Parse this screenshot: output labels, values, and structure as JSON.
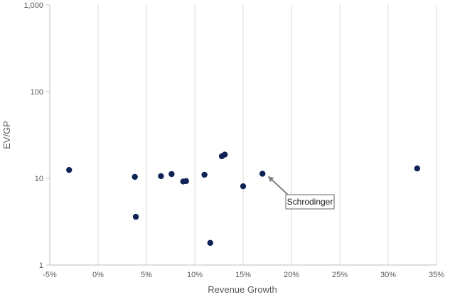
{
  "chart_data": {
    "type": "scatter",
    "xlabel": "Revenue Growth",
    "ylabel": "EV/GP",
    "x_unit": "percent",
    "xlim": [
      -5,
      35
    ],
    "ylim": [
      1,
      1000
    ],
    "y_scale": "log",
    "x_ticks": [
      -5,
      0,
      5,
      10,
      15,
      20,
      25,
      30,
      35
    ],
    "x_tick_labels": [
      "-5%",
      "0%",
      "5%",
      "10%",
      "15%",
      "20%",
      "25%",
      "30%",
      "35%"
    ],
    "y_ticks": [
      1,
      10,
      100,
      1000
    ],
    "y_tick_labels": [
      "1",
      "10",
      "100",
      "1,000"
    ],
    "grid": {
      "vertical": true,
      "horizontal": false
    },
    "marker_color": "#0d2257",
    "points": [
      {
        "x": -3.0,
        "y": 12.5
      },
      {
        "x": 3.8,
        "y": 10.4
      },
      {
        "x": 3.9,
        "y": 3.6
      },
      {
        "x": 6.5,
        "y": 10.6
      },
      {
        "x": 7.6,
        "y": 11.2
      },
      {
        "x": 8.8,
        "y": 9.2
      },
      {
        "x": 9.1,
        "y": 9.3
      },
      {
        "x": 11.0,
        "y": 11.0
      },
      {
        "x": 11.6,
        "y": 1.8
      },
      {
        "x": 12.8,
        "y": 18.0
      },
      {
        "x": 13.1,
        "y": 18.8
      },
      {
        "x": 15.0,
        "y": 8.1
      },
      {
        "x": 17.0,
        "y": 11.3
      },
      {
        "x": 33.0,
        "y": 13.0
      }
    ],
    "annotation": {
      "label": "Schrodinger",
      "target": {
        "x": 17.5,
        "y": 10.8
      }
    }
  }
}
